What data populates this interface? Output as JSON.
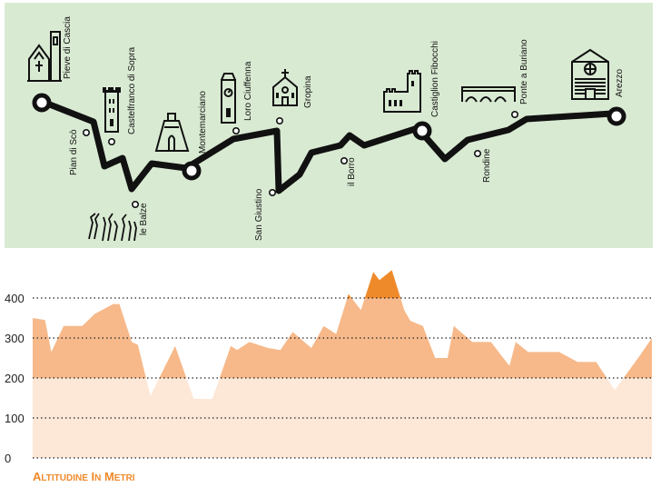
{
  "colors": {
    "map_bg": "#d9ead3",
    "route": "#111111",
    "elev_dark": "#ef8a2b",
    "elev_mid": "#f7b98a",
    "elev_light": "#fde7d7",
    "axis_label": "#ef8a2b"
  },
  "map": {
    "places": [
      {
        "name": "Pieve di Cascia",
        "kind": "major",
        "icon": "church-tower-icon"
      },
      {
        "name": "Pian di Scò",
        "kind": "minor"
      },
      {
        "name": "Castelfranco di Sopra",
        "kind": "minor",
        "icon": "tower-icon"
      },
      {
        "name": "le Balze",
        "kind": "minor",
        "icon": "balze-cliffs-icon"
      },
      {
        "name": "Montemarciano",
        "kind": "major",
        "icon": "oratory-icon"
      },
      {
        "name": "Loro Ciuffenna",
        "kind": "minor",
        "icon": "clock-tower-icon"
      },
      {
        "name": "San Giustino",
        "kind": "minor"
      },
      {
        "name": "Gropina",
        "kind": "minor",
        "icon": "church-icon"
      },
      {
        "name": "il Borro",
        "kind": "minor"
      },
      {
        "name": "Castiglion Fibocchi",
        "kind": "major",
        "icon": "castle-icon"
      },
      {
        "name": "Rondine",
        "kind": "minor"
      },
      {
        "name": "Ponte a Buriano",
        "kind": "minor",
        "icon": "bridge-icon"
      },
      {
        "name": "Arezzo",
        "kind": "major",
        "icon": "cathedral-icon"
      }
    ]
  },
  "chart_data": {
    "type": "area",
    "title": "",
    "ylabel": "Altitudine in metri",
    "ylim": [
      0,
      460
    ],
    "yticks": [
      0,
      100,
      200,
      300,
      400
    ],
    "grid": "horizontal dotted",
    "x": [
      0,
      2,
      3,
      5,
      8,
      10,
      13,
      14,
      16,
      17,
      19,
      23,
      26,
      29,
      32,
      33,
      35,
      38,
      40,
      42,
      45,
      47,
      49,
      51,
      53,
      55,
      56,
      58,
      60,
      61,
      63,
      65,
      67,
      68,
      71,
      72,
      74,
      77,
      78,
      80,
      82,
      85,
      88,
      90,
      91,
      94,
      98,
      100
    ],
    "values": [
      350,
      345,
      265,
      330,
      330,
      360,
      385,
      385,
      290,
      283,
      155,
      280,
      148,
      147,
      280,
      270,
      290,
      275,
      270,
      315,
      275,
      330,
      310,
      410,
      370,
      465,
      445,
      470,
      370,
      343,
      330,
      250,
      250,
      330,
      290,
      290,
      290,
      230,
      290,
      265,
      265,
      265,
      240,
      240,
      240,
      170,
      255,
      300
    ]
  }
}
